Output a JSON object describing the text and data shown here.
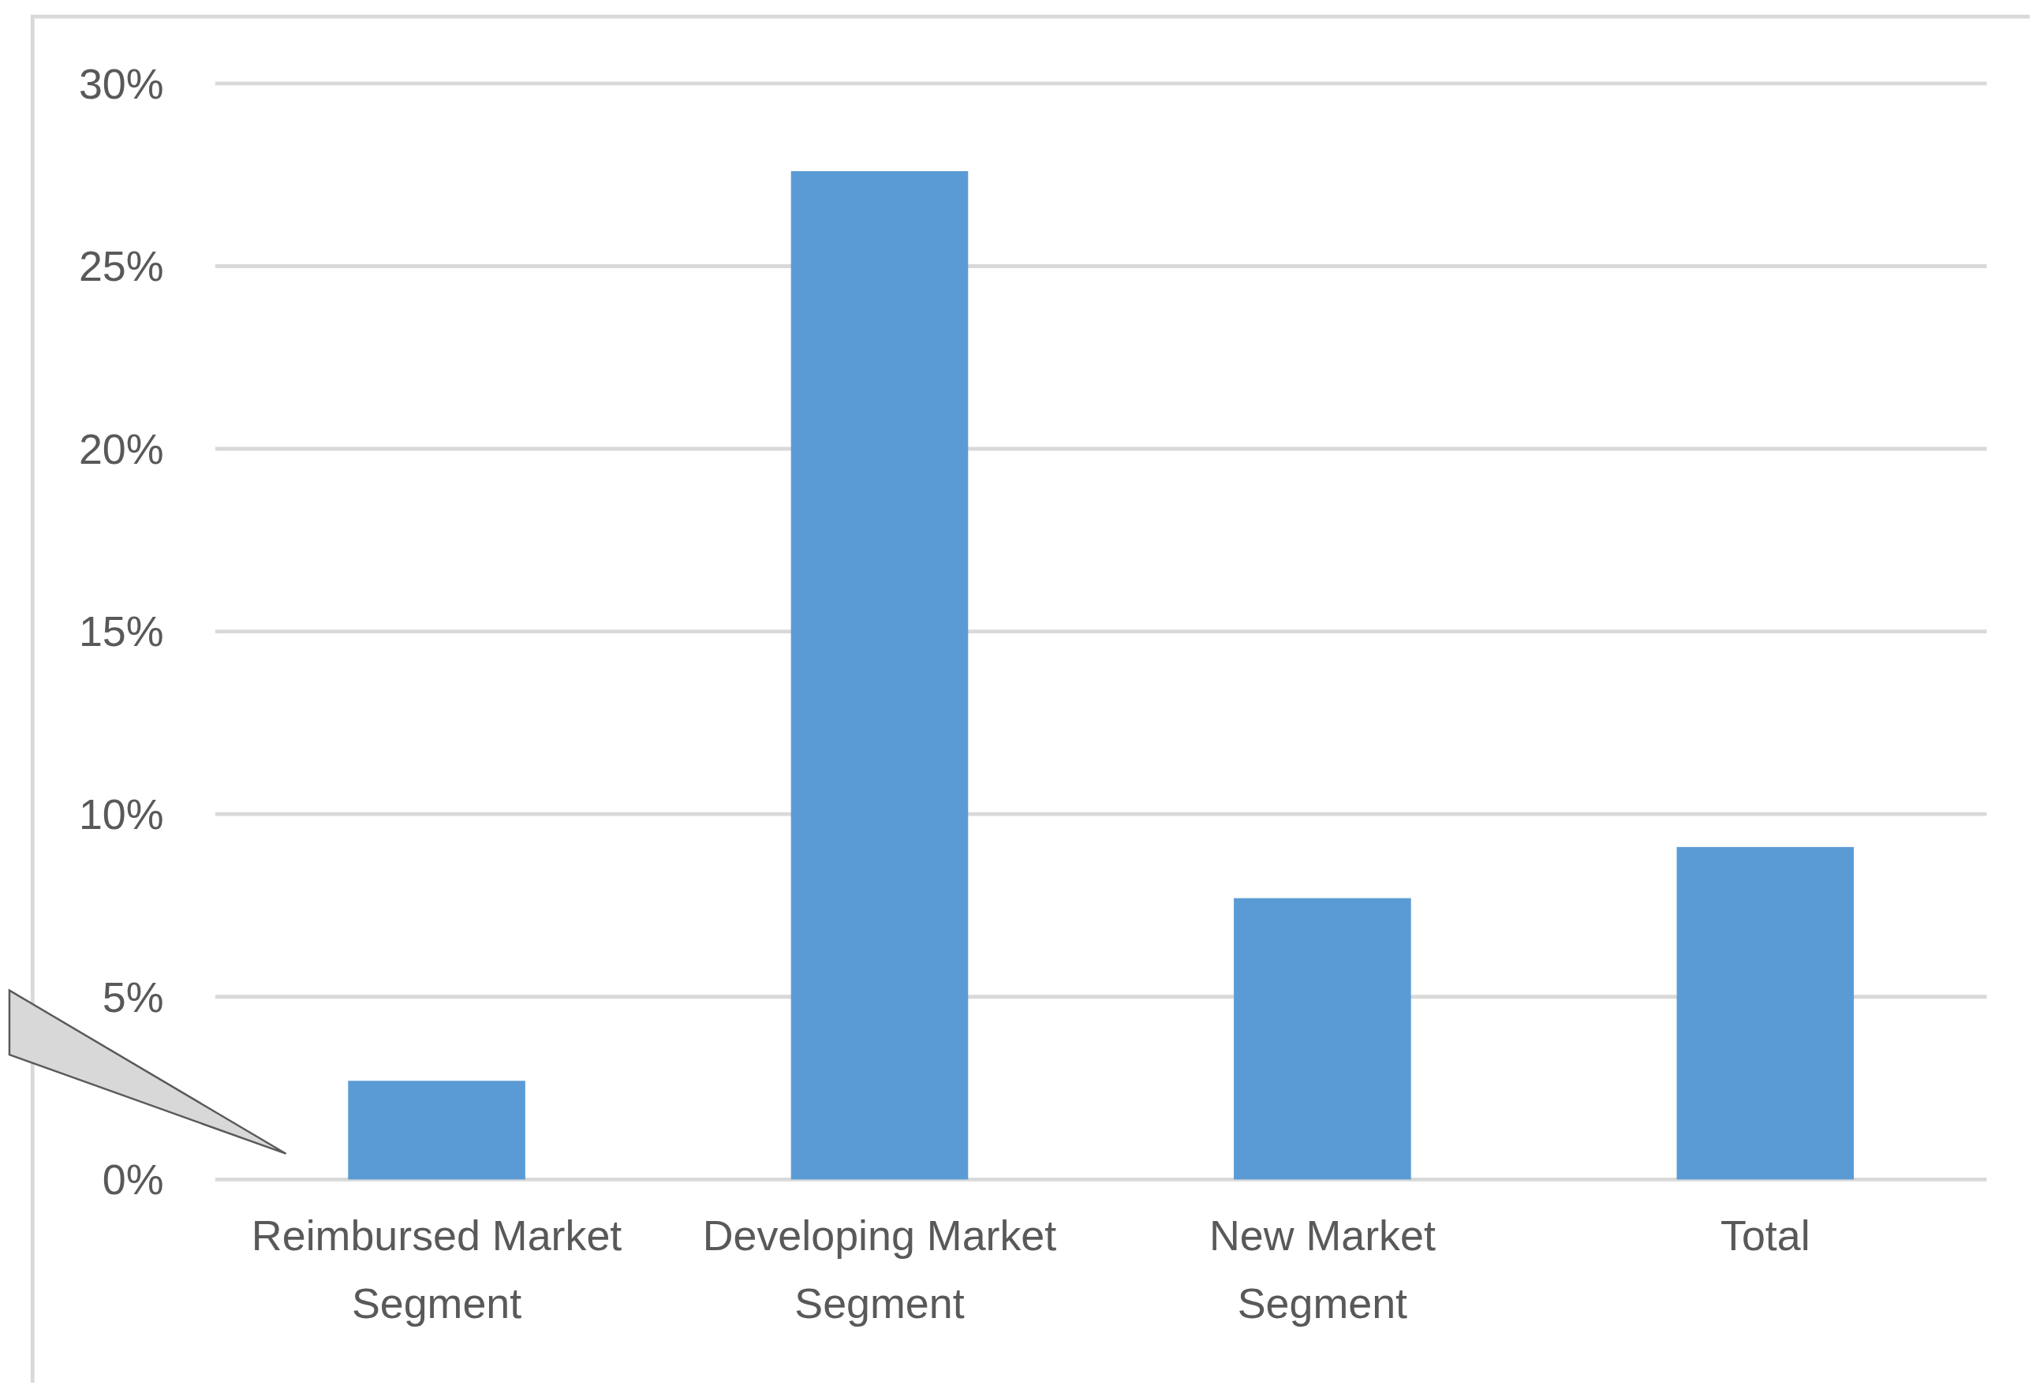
{
  "chart_data": {
    "type": "bar",
    "categories": [
      "Reimbursed Market Segment",
      "Developing Market Segment",
      "New Market Segment",
      "Total"
    ],
    "values": [
      2.7,
      27.6,
      7.7,
      9.1
    ],
    "color": "#5b9bd5",
    "ylim": [
      0,
      30
    ],
    "yticks": [
      {
        "value": 0,
        "label": "0%"
      },
      {
        "value": 5,
        "label": "5%"
      },
      {
        "value": 10,
        "label": "10%"
      },
      {
        "value": 15,
        "label": "15%"
      },
      {
        "value": 20,
        "label": "20%"
      },
      {
        "value": 25,
        "label": "25%"
      },
      {
        "value": 30,
        "label": "30%"
      }
    ],
    "grid": "y"
  }
}
